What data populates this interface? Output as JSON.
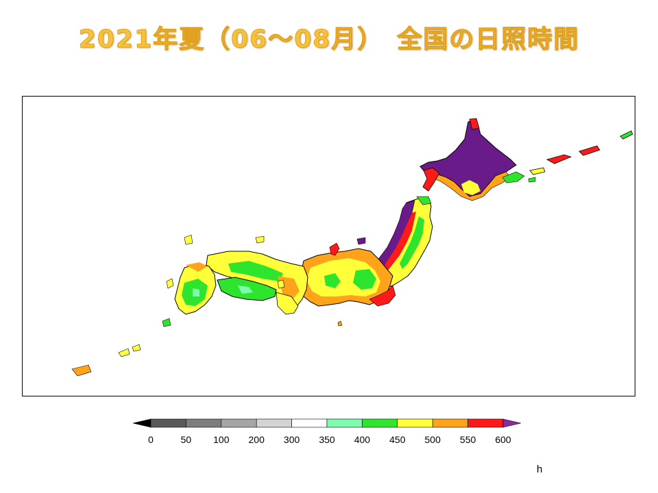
{
  "title": "2021年夏（06～08月）　全国の日照時間",
  "legend": {
    "ticks": [
      "0",
      "50",
      "100",
      "200",
      "300",
      "350",
      "400",
      "450",
      "500",
      "550",
      "600"
    ],
    "colors": [
      "#5a5a5a",
      "#7d7d7d",
      "#a5a5a5",
      "#d4d4d4",
      "#ffffff",
      "#7ffbb0",
      "#2ee52e",
      "#ffff3a",
      "#ffa31a",
      "#ff1a1a"
    ],
    "below_color": "#000000",
    "above_color": "#8a2aa0",
    "unit": "h"
  },
  "map_colors": {
    "coast": "#000000",
    "purple": "#6a1b8a",
    "red": "#ff1a1a",
    "orange": "#ffa31a",
    "yellow": "#ffff3a",
    "green": "#2ee52e",
    "lightgreen": "#7ffbb0"
  }
}
